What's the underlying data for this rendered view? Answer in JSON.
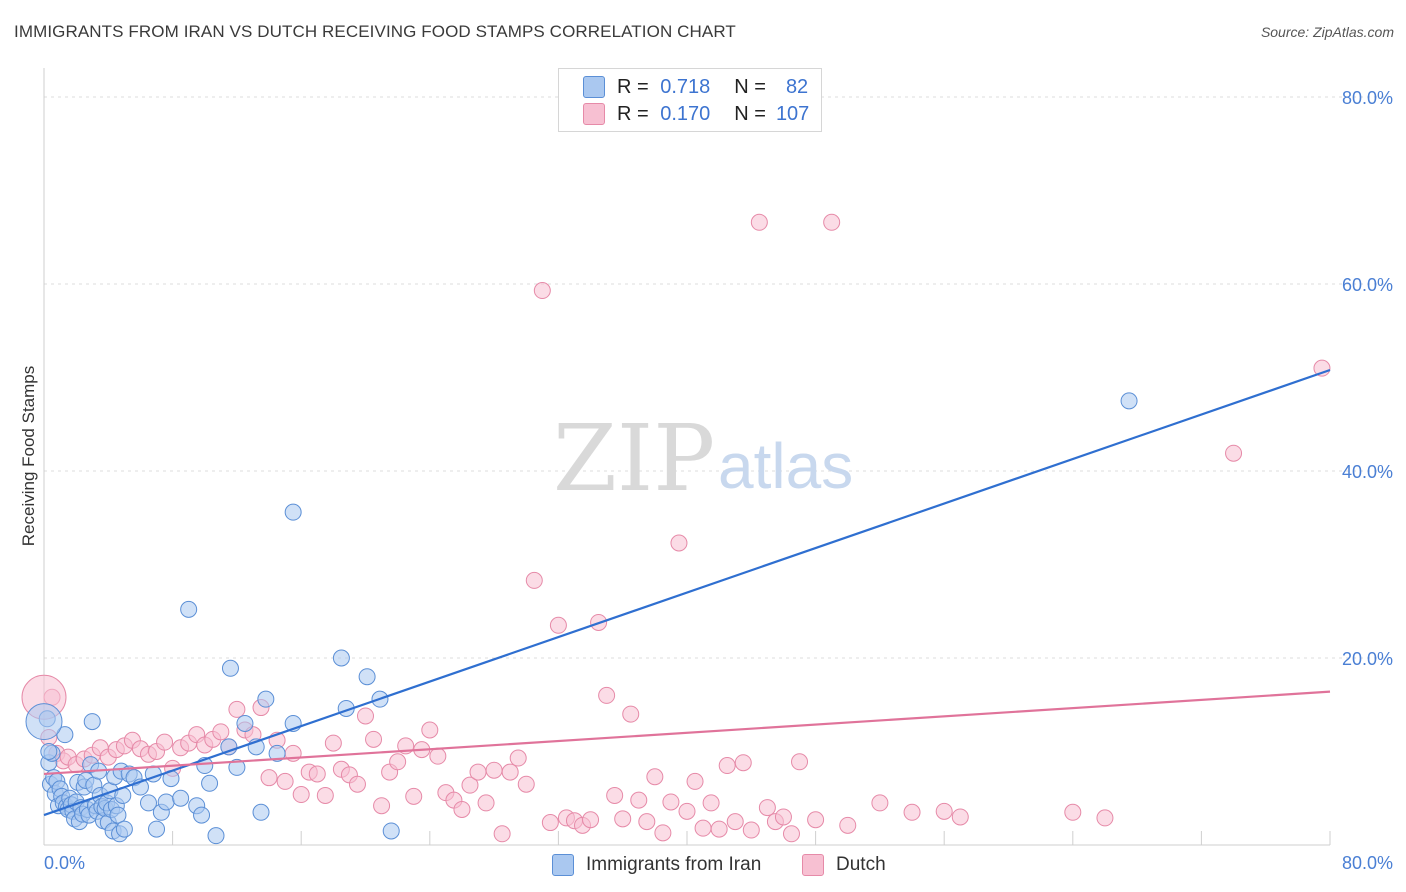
{
  "title": "IMMIGRANTS FROM IRAN VS DUTCH RECEIVING FOOD STAMPS CORRELATION CHART",
  "source": "Source: ZipAtlas.com",
  "watermark": {
    "zip": "ZIP",
    "atlas": "atlas"
  },
  "legend": {
    "r_label": "R =",
    "n_label": "N =",
    "rows": [
      {
        "r": "0.718",
        "n": "82"
      },
      {
        "r": "0.170",
        "n": "107"
      }
    ]
  },
  "colors": {
    "iran_fill": "#aac8f0",
    "iran_stroke": "#5b8fd6",
    "iran_line": "#2f6fd0",
    "dutch_fill": "#f7c0d2",
    "dutch_stroke": "#e68aa8",
    "dutch_line": "#e0739a"
  },
  "chart_data": {
    "type": "scatter",
    "title": "IMMIGRANTS FROM IRAN VS DUTCH RECEIVING FOOD STAMPS CORRELATION CHART",
    "xlabel": "",
    "ylabel": "Receiving Food Stamps",
    "xlim": [
      0,
      80
    ],
    "ylim": [
      0,
      80
    ],
    "x_tick_labels": [
      "0.0%",
      "80.0%"
    ],
    "y_tick_labels": [
      "20.0%",
      "40.0%",
      "60.0%",
      "80.0%"
    ],
    "y_ticks": [
      20,
      40,
      60,
      80
    ],
    "series": [
      {
        "name": "Immigrants from Iran",
        "trend": [
          [
            0,
            3.2
          ],
          [
            80,
            50.8
          ]
        ],
        "points": [
          [
            0.3,
            8.8
          ],
          [
            0.4,
            6.5
          ],
          [
            0.5,
            9.8
          ],
          [
            0.6,
            7.2
          ],
          [
            0.7,
            5.5
          ],
          [
            0.8,
            6.8
          ],
          [
            0.9,
            4.2
          ],
          [
            1.0,
            6.0
          ],
          [
            1.1,
            5.2
          ],
          [
            1.2,
            4.5
          ],
          [
            1.3,
            11.8
          ],
          [
            1.4,
            4.1
          ],
          [
            1.5,
            3.8
          ],
          [
            1.6,
            5.0
          ],
          [
            1.7,
            4.3
          ],
          [
            1.8,
            3.6
          ],
          [
            1.9,
            2.8
          ],
          [
            2.0,
            4.6
          ],
          [
            2.1,
            6.7
          ],
          [
            2.2,
            2.5
          ],
          [
            2.3,
            4.0
          ],
          [
            2.4,
            3.3
          ],
          [
            2.5,
            6.2
          ],
          [
            2.6,
            6.9
          ],
          [
            2.7,
            3.8
          ],
          [
            2.8,
            3.2
          ],
          [
            2.9,
            8.6
          ],
          [
            3.0,
            13.2
          ],
          [
            3.1,
            6.4
          ],
          [
            3.2,
            4.2
          ],
          [
            3.3,
            3.6
          ],
          [
            3.4,
            7.9
          ],
          [
            3.5,
            5.3
          ],
          [
            3.6,
            4.1
          ],
          [
            3.7,
            2.6
          ],
          [
            3.8,
            3.9
          ],
          [
            3.9,
            4.5
          ],
          [
            4.0,
            2.4
          ],
          [
            4.1,
            5.8
          ],
          [
            4.2,
            3.8
          ],
          [
            4.3,
            1.5
          ],
          [
            4.4,
            7.3
          ],
          [
            4.5,
            4.2
          ],
          [
            4.6,
            3.2
          ],
          [
            4.7,
            1.2
          ],
          [
            4.8,
            7.9
          ],
          [
            4.9,
            5.3
          ],
          [
            5.0,
            1.7
          ],
          [
            5.3,
            7.6
          ],
          [
            5.6,
            7.2
          ],
          [
            6.0,
            6.2
          ],
          [
            6.5,
            4.5
          ],
          [
            6.8,
            7.6
          ],
          [
            7.0,
            1.7
          ],
          [
            7.3,
            3.5
          ],
          [
            7.6,
            4.6
          ],
          [
            7.9,
            7.1
          ],
          [
            8.5,
            5.0
          ],
          [
            9.0,
            25.2
          ],
          [
            9.5,
            4.2
          ],
          [
            9.8,
            3.2
          ],
          [
            10.0,
            8.5
          ],
          [
            10.3,
            6.6
          ],
          [
            10.7,
            1.0
          ],
          [
            11.5,
            10.5
          ],
          [
            11.6,
            18.9
          ],
          [
            12.0,
            8.3
          ],
          [
            12.5,
            13.0
          ],
          [
            13.2,
            10.5
          ],
          [
            13.5,
            3.5
          ],
          [
            13.8,
            15.6
          ],
          [
            14.5,
            9.8
          ],
          [
            15.5,
            13.0
          ],
          [
            15.5,
            35.6
          ],
          [
            18.5,
            20.0
          ],
          [
            18.8,
            14.6
          ],
          [
            20.1,
            18.0
          ],
          [
            20.9,
            15.6
          ],
          [
            21.6,
            1.5
          ],
          [
            67.5,
            47.5
          ],
          [
            0.2,
            13.5
          ],
          [
            0.3,
            10.0
          ]
        ]
      },
      {
        "name": "Dutch",
        "trend": [
          [
            0,
            7.6
          ],
          [
            80,
            16.4
          ]
        ],
        "points": [
          [
            0.5,
            15.8
          ],
          [
            0.8,
            9.8
          ],
          [
            1.2,
            9.0
          ],
          [
            1.5,
            9.4
          ],
          [
            2.0,
            8.6
          ],
          [
            2.5,
            9.2
          ],
          [
            3.0,
            9.6
          ],
          [
            3.5,
            10.4
          ],
          [
            4.0,
            9.4
          ],
          [
            4.5,
            10.2
          ],
          [
            5.0,
            10.6
          ],
          [
            5.5,
            11.2
          ],
          [
            6.0,
            10.3
          ],
          [
            6.5,
            9.7
          ],
          [
            7.0,
            10.0
          ],
          [
            7.5,
            11.0
          ],
          [
            8.0,
            8.2
          ],
          [
            8.5,
            10.4
          ],
          [
            9.0,
            10.9
          ],
          [
            9.5,
            11.8
          ],
          [
            10.0,
            10.7
          ],
          [
            10.5,
            11.3
          ],
          [
            11.0,
            12.1
          ],
          [
            11.5,
            10.5
          ],
          [
            12.0,
            14.5
          ],
          [
            12.5,
            12.3
          ],
          [
            13.0,
            11.8
          ],
          [
            13.5,
            14.7
          ],
          [
            14.0,
            7.2
          ],
          [
            14.5,
            11.2
          ],
          [
            15.0,
            6.8
          ],
          [
            15.5,
            9.8
          ],
          [
            16.0,
            5.4
          ],
          [
            16.5,
            7.8
          ],
          [
            17.0,
            7.6
          ],
          [
            17.5,
            5.3
          ],
          [
            18.0,
            10.9
          ],
          [
            18.5,
            8.1
          ],
          [
            19.0,
            7.5
          ],
          [
            19.5,
            6.5
          ],
          [
            20.0,
            13.8
          ],
          [
            20.5,
            11.3
          ],
          [
            21.0,
            4.2
          ],
          [
            21.5,
            7.8
          ],
          [
            22.0,
            8.9
          ],
          [
            22.5,
            10.6
          ],
          [
            23.0,
            5.2
          ],
          [
            23.5,
            10.2
          ],
          [
            24.0,
            12.3
          ],
          [
            24.5,
            9.5
          ],
          [
            25.0,
            5.6
          ],
          [
            25.5,
            4.8
          ],
          [
            26.0,
            3.8
          ],
          [
            26.5,
            6.4
          ],
          [
            27.0,
            7.8
          ],
          [
            27.5,
            4.5
          ],
          [
            28.0,
            8.0
          ],
          [
            28.5,
            1.2
          ],
          [
            29.0,
            7.8
          ],
          [
            29.5,
            9.3
          ],
          [
            30.0,
            6.5
          ],
          [
            30.5,
            28.3
          ],
          [
            31.0,
            59.3
          ],
          [
            31.5,
            2.4
          ],
          [
            32.0,
            23.5
          ],
          [
            32.5,
            2.9
          ],
          [
            33.0,
            2.6
          ],
          [
            33.5,
            2.1
          ],
          [
            34.0,
            2.7
          ],
          [
            34.5,
            23.8
          ],
          [
            35.0,
            16.0
          ],
          [
            35.5,
            5.3
          ],
          [
            36.0,
            2.8
          ],
          [
            36.5,
            14.0
          ],
          [
            37.0,
            4.8
          ],
          [
            37.5,
            2.5
          ],
          [
            38.0,
            7.3
          ],
          [
            38.5,
            1.3
          ],
          [
            39.0,
            4.6
          ],
          [
            39.5,
            32.3
          ],
          [
            40.0,
            3.6
          ],
          [
            40.5,
            6.8
          ],
          [
            41.0,
            1.8
          ],
          [
            41.5,
            4.5
          ],
          [
            42.0,
            1.7
          ],
          [
            42.5,
            8.5
          ],
          [
            43.0,
            2.5
          ],
          [
            43.5,
            8.8
          ],
          [
            44.0,
            1.6
          ],
          [
            44.5,
            66.6
          ],
          [
            45.0,
            4.0
          ],
          [
            45.5,
            2.5
          ],
          [
            46.0,
            3.0
          ],
          [
            46.5,
            1.2
          ],
          [
            47.0,
            8.9
          ],
          [
            48.0,
            2.7
          ],
          [
            49.0,
            66.6
          ],
          [
            50.0,
            2.1
          ],
          [
            52.0,
            4.5
          ],
          [
            54.0,
            3.5
          ],
          [
            56.0,
            3.6
          ],
          [
            57.0,
            3.0
          ],
          [
            64.0,
            3.5
          ],
          [
            66.0,
            2.9
          ],
          [
            74.0,
            41.9
          ],
          [
            79.5,
            51.0
          ],
          [
            0.3,
            11.5
          ]
        ]
      }
    ]
  },
  "bottom_legend": [
    {
      "label": "Immigrants from Iran"
    },
    {
      "label": "Dutch"
    }
  ]
}
